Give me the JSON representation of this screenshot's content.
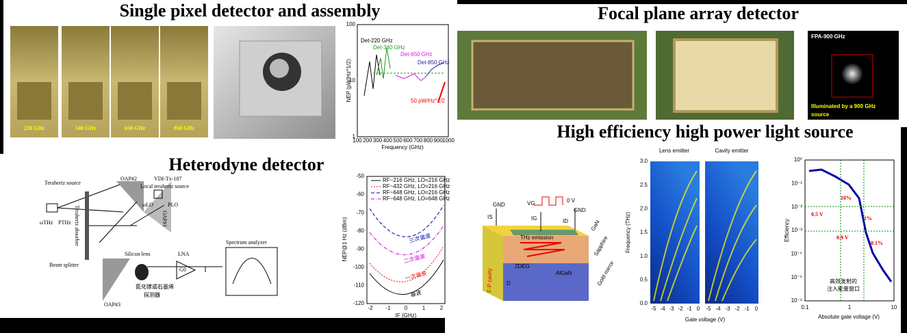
{
  "single_pixel": {
    "title": "Single pixel detector and assembly",
    "chip_labels": [
      "220 GHz",
      "340 GHz",
      "650 GHz",
      "850 GHz"
    ],
    "plot": {
      "ylabel": "NEP (pW/Hz^1/2)",
      "xlabel": "Frequency (GHz)",
      "yticks": [
        "1",
        "10",
        "100"
      ],
      "xticks": [
        "100",
        "200",
        "300",
        "400",
        "500",
        "600",
        "700",
        "800",
        "900",
        "1000"
      ],
      "annotations": [
        "Det-220 GHz",
        "Det-340 GHz",
        "Det-650 GHz",
        "Det-850 GHz",
        "50 pW/Hz^1/2"
      ]
    }
  },
  "focal_plane": {
    "title": "Focal plane array detector",
    "image_label": "FPA-900 GHz",
    "image_caption": [
      "Illuminated by a 900 GHz",
      "source"
    ]
  },
  "heterodyne": {
    "title": "Heterodyne detector",
    "diagram": {
      "thz_source": "Terahertz source",
      "lo_model": "VDI-Tx-187",
      "lo_source": "Local terahertz source",
      "omega_thz": "ωTHz",
      "p_thz": "PTHz",
      "omega_lo": "ωLO",
      "p_lo": "PLO",
      "oap2": "OAP#2",
      "oap1": "OAP#1",
      "oap3": "OAP#3",
      "absorber": "Terahertz absorber",
      "splitter": "Beam splitter",
      "lens": "Silicon lens",
      "lna": "LNA",
      "gain": "G0",
      "analyzer": "Spectrum analyzer",
      "detector": [
        "氮化镓或石墨烯",
        "探测器"
      ]
    },
    "plot": {
      "ylabel": "NEP@1 Hz (dBm)",
      "xlabel": "IF (GHz)",
      "yticks": [
        "-50",
        "-60",
        "-70",
        "-80",
        "-90",
        "-100",
        "-110",
        "-120"
      ],
      "xticks": [
        "-2",
        "-1",
        "0",
        "1",
        "2"
      ],
      "legend": [
        "RF~216 GHz, LO=216 GHz",
        "RF~432 GHz, LO=216 GHz",
        "RF~648 GHz, LO=216 GHz",
        "RF~648 GHz, LO=648 GHz"
      ],
      "curve_labels": [
        "三次谐波",
        "二次谐波",
        "一次谐波",
        "基波"
      ]
    }
  },
  "light_source": {
    "title": "High efficiency high power light source",
    "device": {
      "gnd_left": "GND",
      "gnd_right": "GND",
      "vg": "VG",
      "zero_v": "0 V",
      "is": "IS",
      "ig": "IG",
      "id": "ID",
      "gan": "GaN",
      "emission": "THz emission",
      "sapphire": "Sapphire",
      "mirror": "Gold mirror",
      "twodeg": "2DEG",
      "algan": "AlGaN",
      "cavity": "F-P cavity",
      "d": "D"
    },
    "spectra": {
      "panel_titles": [
        "Lens emitter",
        "Cavity emitter"
      ],
      "ylabel": "Frequency (THz)",
      "xlabel": "Gate voltage (V)",
      "yticks": [
        "0.0",
        "0.5",
        "1.0",
        "1.5",
        "2.0",
        "2.5",
        "3.0"
      ],
      "xticks": [
        "-5",
        "-4",
        "-3",
        "-2",
        "-1",
        "0"
      ]
    },
    "efficiency": {
      "ylabel": "Efficiency",
      "xlabel": "Absolute gate voltage (V)",
      "yticks": [
        "10⁰",
        "10⁻¹",
        "10⁻²",
        "10⁻³",
        "10⁻⁴",
        "10⁻⁵",
        "10⁻⁶"
      ],
      "xticks": [
        "0.1",
        "1",
        "10"
      ],
      "annotations": [
        "10%",
        "0.5 V",
        "1%",
        "0.9 V",
        "0.1%"
      ],
      "window": [
        "高效发射的",
        "注入能量窗口"
      ]
    }
  }
}
